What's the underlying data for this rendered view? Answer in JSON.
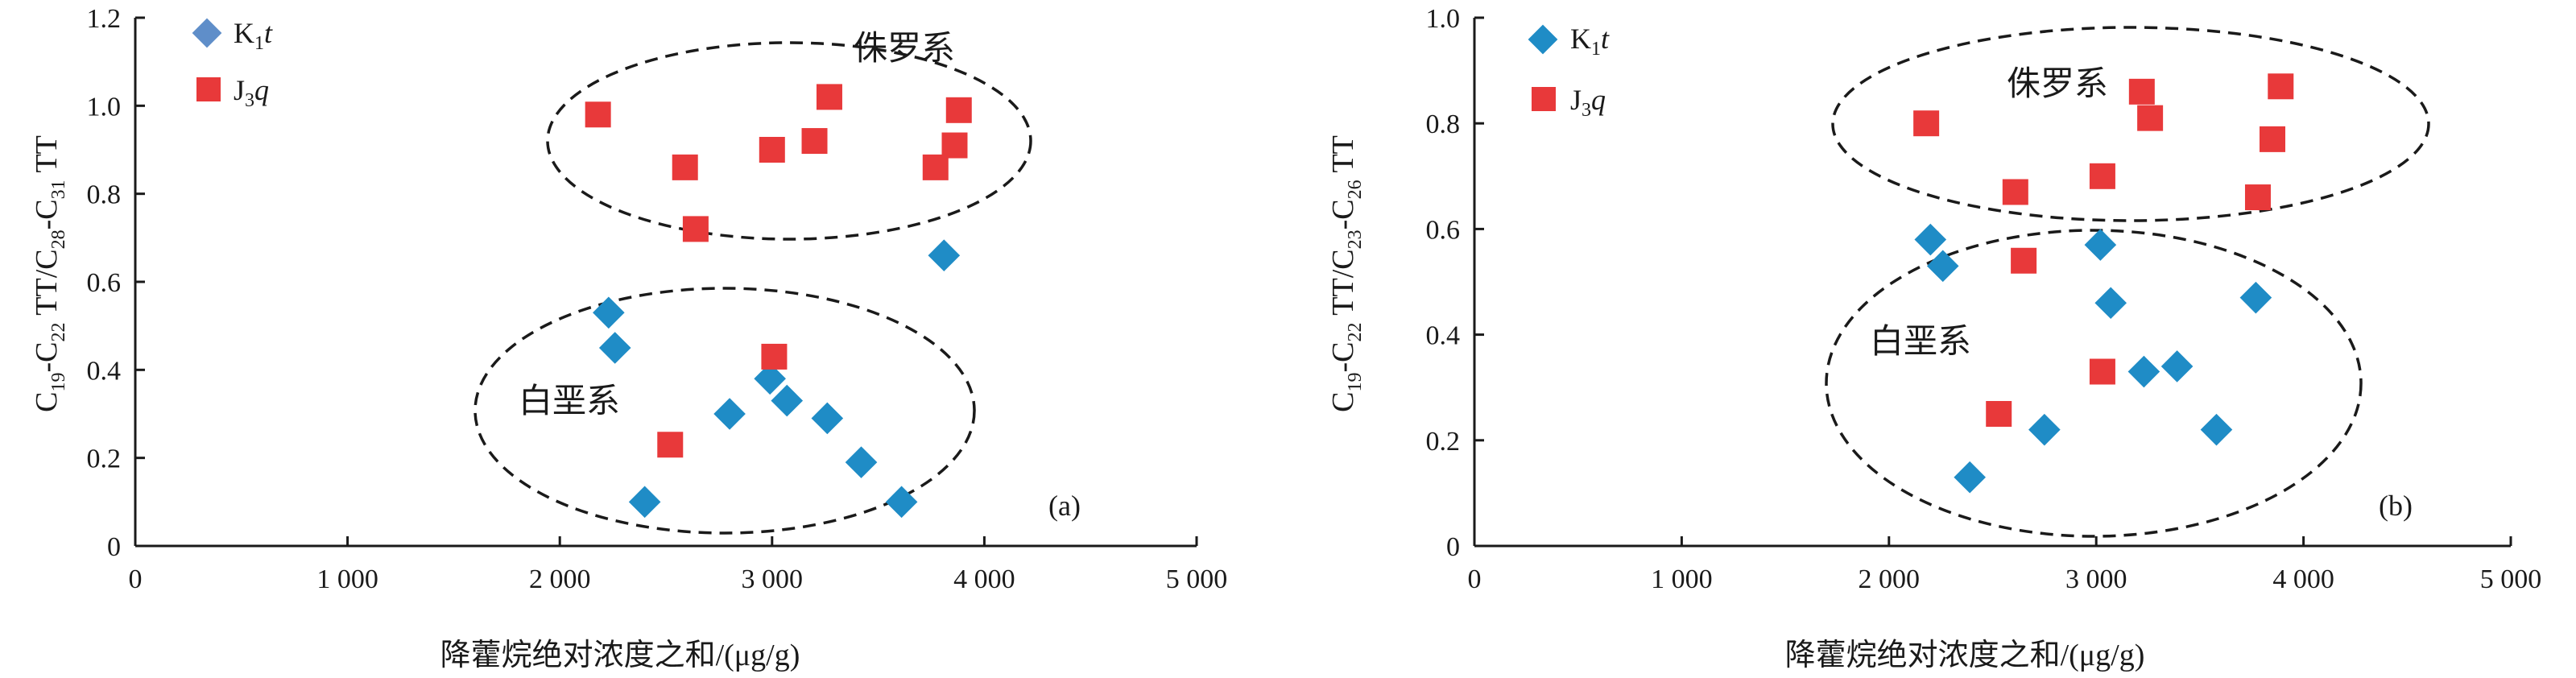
{
  "colors": {
    "k1t": "#1f8cc6",
    "j3q": "#e8393a",
    "k1t_legend_a": "#5f8ec9",
    "axis": "#1a1a1a"
  },
  "chart_data": [
    {
      "type": "scatter",
      "panel_label": "(a)",
      "xlabel": "降藿烷绝对浓度之和/(μg/g)",
      "ylabel": "C19-C22TT/C28-C31TT",
      "xlim": [
        0,
        5000
      ],
      "ylim": [
        0,
        1.2
      ],
      "x_ticks": [
        0,
        1000,
        2000,
        3000,
        4000,
        5000
      ],
      "x_tick_labels": [
        "0",
        "1 000",
        "2 000",
        "3 000",
        "4 000",
        "5 000"
      ],
      "y_ticks": [
        0,
        0.2,
        0.4,
        0.6,
        0.8,
        1.0,
        1.2
      ],
      "y_tick_labels": [
        "0",
        "0.2",
        "0.4",
        "0.6",
        "0.8",
        "1.0",
        "1.2"
      ],
      "legend": {
        "position": "top-left",
        "entries": [
          "K1t",
          "J3q"
        ]
      },
      "series": [
        {
          "name": "K1t",
          "marker": "diamond",
          "points": [
            [
              2230,
              0.53
            ],
            [
              2260,
              0.45
            ],
            [
              2400,
              0.1
            ],
            [
              2800,
              0.3
            ],
            [
              2990,
              0.38
            ],
            [
              3070,
              0.33
            ],
            [
              3260,
              0.29
            ],
            [
              3420,
              0.19
            ],
            [
              3610,
              0.1
            ],
            [
              3810,
              0.66
            ]
          ]
        },
        {
          "name": "J3q",
          "marker": "square",
          "points": [
            [
              2180,
              0.98
            ],
            [
              2520,
              0.23
            ],
            [
              2590,
              0.86
            ],
            [
              2640,
              0.72
            ],
            [
              3000,
              0.9
            ],
            [
              3010,
              0.43
            ],
            [
              3200,
              0.92
            ],
            [
              3270,
              1.02
            ],
            [
              3770,
              0.86
            ],
            [
              3860,
              0.91
            ],
            [
              3880,
              0.99
            ]
          ]
        }
      ],
      "annotations": [
        "侏罗系",
        "白垩系"
      ]
    },
    {
      "type": "scatter",
      "panel_label": "(b)",
      "xlabel": "降藿烷绝对浓度之和/(μg/g)",
      "ylabel": "C19-C22TT/C23-C26TT",
      "xlim": [
        0,
        5000
      ],
      "ylim": [
        0,
        1.0
      ],
      "x_ticks": [
        0,
        1000,
        2000,
        3000,
        4000,
        5000
      ],
      "x_tick_labels": [
        "0",
        "1 000",
        "2 000",
        "3 000",
        "4 000",
        "5 000"
      ],
      "y_ticks": [
        0,
        0.2,
        0.4,
        0.6,
        0.8,
        1.0
      ],
      "y_tick_labels": [
        "0",
        "0.2",
        "0.4",
        "0.6",
        "0.8",
        "1.0"
      ],
      "legend": {
        "position": "top-left",
        "entries": [
          "K1t",
          "J3q"
        ]
      },
      "series": [
        {
          "name": "K1t",
          "marker": "diamond",
          "points": [
            [
              2200,
              0.58
            ],
            [
              2260,
              0.53
            ],
            [
              2390,
              0.13
            ],
            [
              2750,
              0.22
            ],
            [
              3020,
              0.57
            ],
            [
              3070,
              0.46
            ],
            [
              3230,
              0.33
            ],
            [
              3390,
              0.34
            ],
            [
              3580,
              0.22
            ],
            [
              3770,
              0.47
            ]
          ]
        },
        {
          "name": "J3q",
          "marker": "square",
          "points": [
            [
              2180,
              0.8
            ],
            [
              2530,
              0.25
            ],
            [
              2610,
              0.67
            ],
            [
              2650,
              0.54
            ],
            [
              3030,
              0.7
            ],
            [
              3030,
              0.33
            ],
            [
              3220,
              0.86
            ],
            [
              3260,
              0.81
            ],
            [
              3780,
              0.66
            ],
            [
              3850,
              0.77
            ],
            [
              3890,
              0.87
            ]
          ]
        }
      ],
      "annotations": [
        "侏罗系",
        "白垩系"
      ]
    }
  ]
}
